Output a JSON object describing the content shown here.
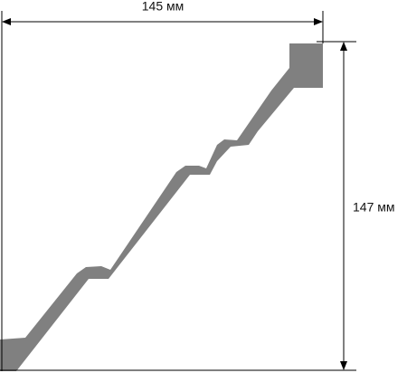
{
  "dimensions": {
    "width_label": "145 мм",
    "height_label": "147 мм"
  }
}
